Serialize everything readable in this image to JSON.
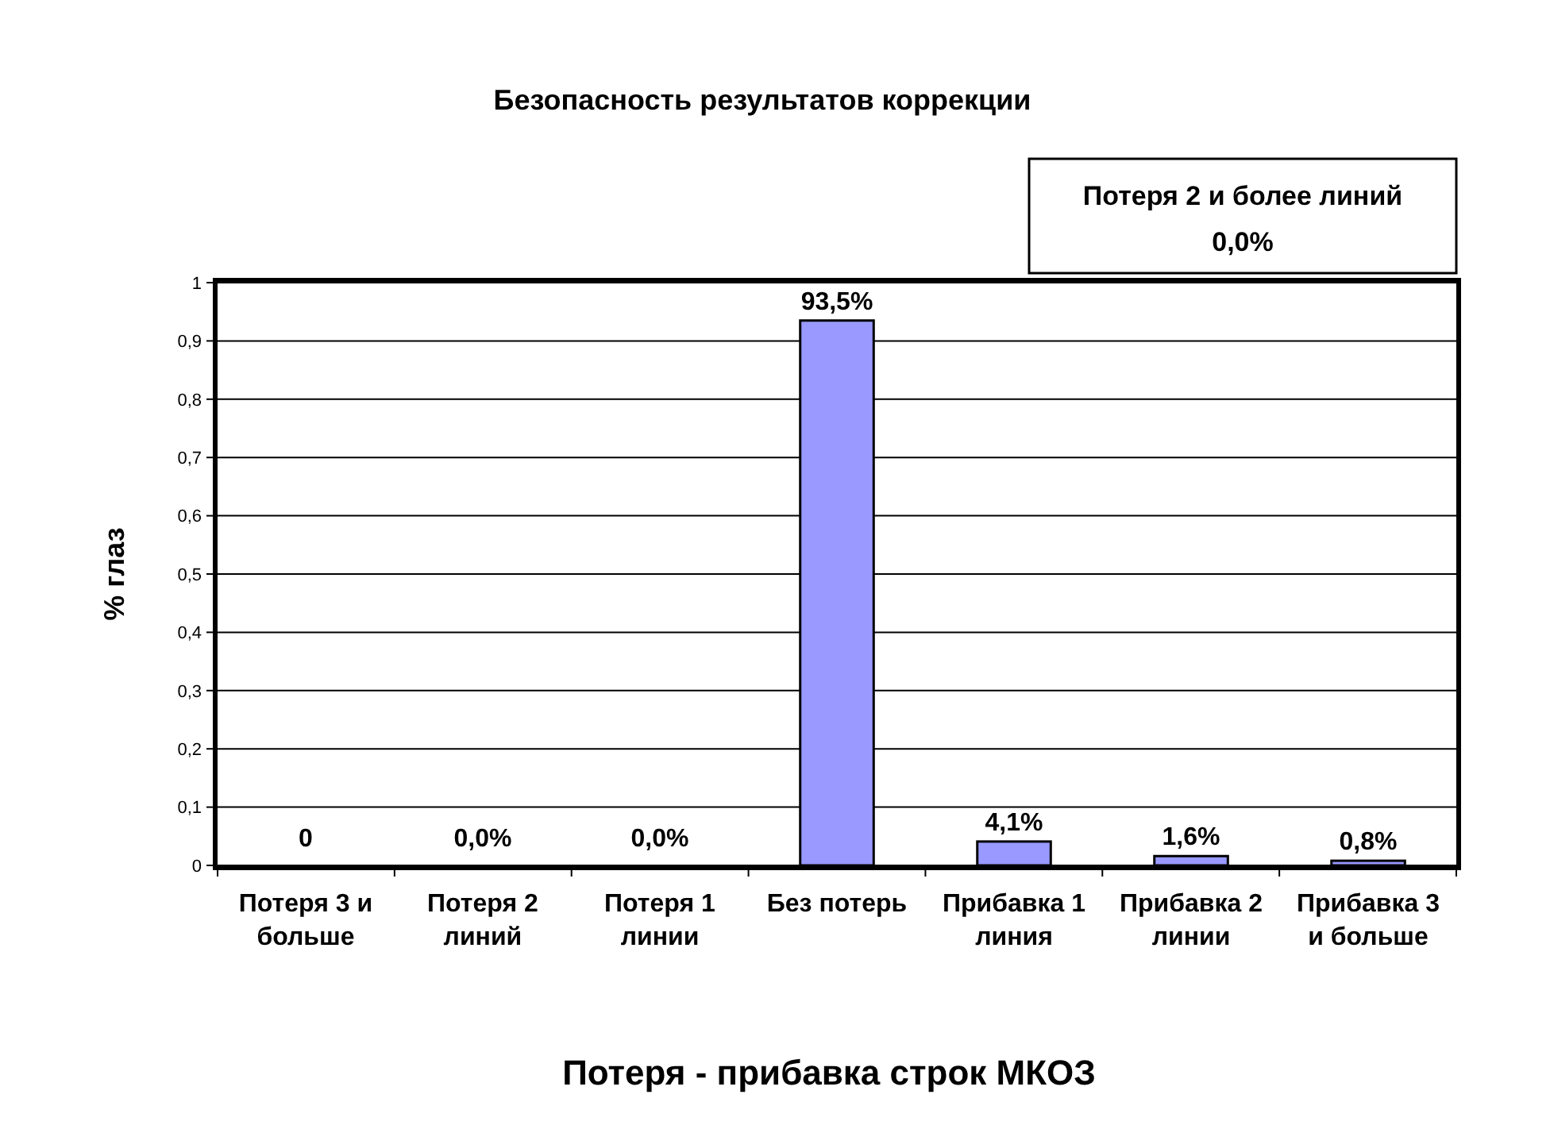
{
  "chart_data": {
    "type": "bar",
    "title": "Безопасность результатов коррекции",
    "xlabel": "Потеря - прибавка строк МКОЗ",
    "ylabel": "% глаз",
    "categories": [
      "Потеря 3 и больше",
      "Потеря 2 линий",
      "Потеря 1 линии",
      "Без потерь",
      "Прибавка 1 линия",
      "Прибавка 2 линии",
      "Прибавка 3 и больше"
    ],
    "values": [
      0,
      0,
      0,
      0.935,
      0.041,
      0.016,
      0.008
    ],
    "value_labels": [
      "0",
      "0,0%",
      "0,0%",
      "93,5%",
      "4,1%",
      "1,6%",
      "0,8%"
    ],
    "color": "#9999ff",
    "ylim": [
      0,
      1
    ],
    "yticks": [
      0,
      {
        "value": 0.1,
        "label": "0,1"
      },
      {
        "value": 0.2,
        "label": "0,2"
      },
      {
        "value": 0.3,
        "label": "0,3"
      },
      {
        "value": 0.4,
        "label": "0,4"
      },
      {
        "value": 0.5,
        "label": "0,5"
      },
      {
        "value": 0.6,
        "label": "0,6"
      },
      {
        "value": 0.7,
        "label": "0,7"
      },
      {
        "value": 0.8,
        "label": "0,8"
      },
      {
        "value": 0.9,
        "label": "0,9"
      },
      1
    ],
    "grid": "y",
    "annotations": [
      "Потеря 2 и более линий\n0,0%"
    ]
  }
}
